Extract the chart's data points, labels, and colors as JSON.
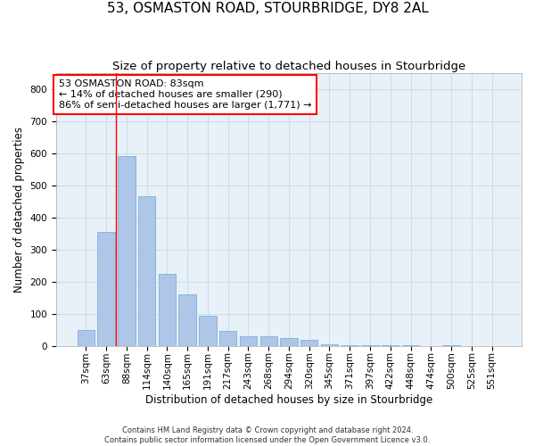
{
  "title": "53, OSMASTON ROAD, STOURBRIDGE, DY8 2AL",
  "subtitle": "Size of property relative to detached houses in Stourbridge",
  "xlabel": "Distribution of detached houses by size in Stourbridge",
  "ylabel": "Number of detached properties",
  "bar_color": "#aec6e8",
  "bar_edge_color": "#6aaad4",
  "background_color": "#e8f0f8",
  "categories": [
    "37sqm",
    "63sqm",
    "88sqm",
    "114sqm",
    "140sqm",
    "165sqm",
    "191sqm",
    "217sqm",
    "243sqm",
    "268sqm",
    "294sqm",
    "320sqm",
    "345sqm",
    "371sqm",
    "397sqm",
    "422sqm",
    "448sqm",
    "474sqm",
    "500sqm",
    "525sqm",
    "551sqm"
  ],
  "values": [
    50,
    355,
    590,
    465,
    225,
    160,
    95,
    48,
    32,
    30,
    25,
    20,
    5,
    3,
    2,
    2,
    2,
    1,
    2,
    1,
    1
  ],
  "ylim": [
    0,
    850
  ],
  "yticks": [
    0,
    100,
    200,
    300,
    400,
    500,
    600,
    700,
    800
  ],
  "property_marker_label": "53 OSMASTON ROAD: 83sqm",
  "annotation_line1": "← 14% of detached houses are smaller (290)",
  "annotation_line2": "86% of semi-detached houses are larger (1,771) →",
  "red_line_x": 1.5,
  "footer_line1": "Contains HM Land Registry data © Crown copyright and database right 2024.",
  "footer_line2": "Contains public sector information licensed under the Open Government Licence v3.0.",
  "grid_color": "#c8d8ea",
  "title_fontsize": 11,
  "subtitle_fontsize": 9.5,
  "axis_label_fontsize": 8.5,
  "tick_fontsize": 7.5,
  "annotation_fontsize": 8,
  "footer_fontsize": 6
}
